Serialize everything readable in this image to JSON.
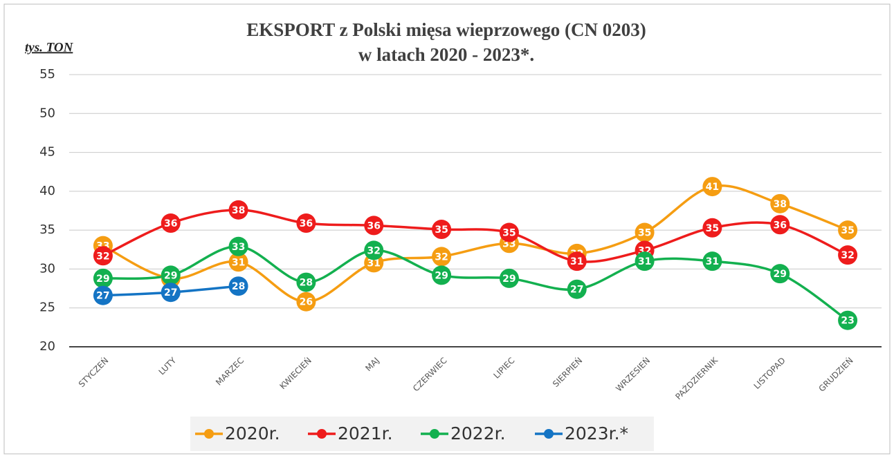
{
  "chart_data": {
    "type": "line",
    "title": [
      "EKSPORT z Polski mięsa wieprzowego  (CN 0203)",
      "w latach 2020 - 2023*."
    ],
    "y_label": "tys. TON",
    "categories": [
      "STYCZEŃ",
      "LUTY",
      "MARZEC",
      "KWIECIEŃ",
      "MAJ",
      "CZERWIEC",
      "LIPIEC",
      "SIERPIEŃ",
      "WRZESIEŃ",
      "PAŹDZIERNIK",
      "LISTOPAD",
      "GRUDZIEŃ"
    ],
    "series": [
      {
        "name": "2020r.",
        "color": "#f59d12",
        "values": [
          33.0,
          28.8,
          30.9,
          25.8,
          30.8,
          31.6,
          33.3,
          32.0,
          34.7,
          40.6,
          38.4,
          35.0
        ],
        "value_labels": [
          "33",
          "29",
          "31",
          "26",
          "31",
          "32",
          "33",
          "32",
          "35",
          "41",
          "38",
          "35"
        ]
      },
      {
        "name": "2021r.",
        "color": "#ee1c1c",
        "values": [
          31.7,
          35.9,
          37.6,
          35.9,
          35.6,
          35.1,
          34.7,
          31.0,
          32.4,
          35.3,
          35.7,
          31.8
        ],
        "value_labels": [
          "32",
          "36",
          "38",
          "36",
          "36",
          "35",
          "35",
          "31",
          "32",
          "35",
          "36",
          "32"
        ]
      },
      {
        "name": "2022r.",
        "color": "#13b04f",
        "values": [
          28.8,
          29.2,
          32.9,
          28.3,
          32.4,
          29.2,
          28.8,
          27.4,
          31.0,
          31.0,
          29.4,
          23.4
        ],
        "value_labels": [
          "29",
          "29",
          "33",
          "28",
          "32",
          "29",
          "29",
          "27",
          "31",
          "31",
          "29",
          "23"
        ]
      },
      {
        "name": "2023r.*",
        "color": "#1474c4",
        "values": [
          26.6,
          27.0,
          27.8,
          null,
          null,
          null,
          null,
          null,
          null,
          null,
          null,
          null
        ],
        "value_labels": [
          "27",
          "27",
          "28",
          null,
          null,
          null,
          null,
          null,
          null,
          null,
          null,
          null
        ]
      }
    ],
    "ylim": [
      20,
      55
    ],
    "yticks": [
      20,
      25,
      30,
      35,
      40,
      45,
      50,
      55
    ],
    "grid": true,
    "legend": "bottom"
  }
}
